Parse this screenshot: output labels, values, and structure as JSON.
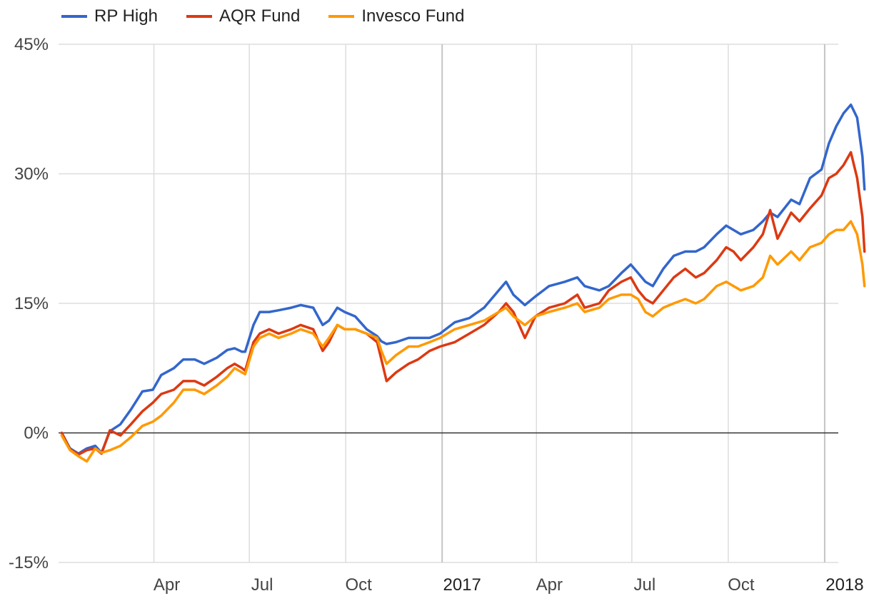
{
  "chart_data": {
    "type": "line",
    "legend_position": "top-left",
    "grid": true,
    "y_axis": {
      "format": "percent",
      "ticks": [
        "45%",
        "30%",
        "15%",
        "0%",
        "-15%"
      ],
      "tick_values": [
        45,
        30,
        15,
        0,
        -15
      ],
      "ylim": [
        -15,
        45
      ]
    },
    "x_axis": {
      "type": "date",
      "range": [
        "2016-01-01",
        "2018-01-14"
      ],
      "ticks": [
        {
          "date": "2016-04-01",
          "label": "Apr",
          "major": false
        },
        {
          "date": "2016-07-01",
          "label": "Jul",
          "major": false
        },
        {
          "date": "2016-10-01",
          "label": "Oct",
          "major": false
        },
        {
          "date": "2017-01-01",
          "label": "2017",
          "major": true
        },
        {
          "date": "2017-04-01",
          "label": "Apr",
          "major": false
        },
        {
          "date": "2017-07-01",
          "label": "Jul",
          "major": false
        },
        {
          "date": "2017-10-01",
          "label": "Oct",
          "major": false
        },
        {
          "date": "2018-01-01",
          "label": "2018",
          "major": true
        }
      ]
    },
    "colors": {
      "rp_high": "#3366cc",
      "aqr": "#dc3912",
      "invesco": "#ff9900",
      "grid": "#dddddd",
      "major_grid": "#c4c4c4",
      "zero_line": "#333333"
    },
    "series": [
      {
        "name": "RP High",
        "color": "#3366cc",
        "points": [
          [
            "2016-01-04",
            0
          ],
          [
            "2016-01-12",
            -1.8
          ],
          [
            "2016-01-20",
            -2.4
          ],
          [
            "2016-01-28",
            -1.8
          ],
          [
            "2016-02-05",
            -1.5
          ],
          [
            "2016-02-11",
            -2.3
          ],
          [
            "2016-02-19",
            0.2
          ],
          [
            "2016-02-29",
            1.0
          ],
          [
            "2016-03-10",
            2.7
          ],
          [
            "2016-03-21",
            4.8
          ],
          [
            "2016-03-31",
            5.0
          ],
          [
            "2016-04-08",
            6.7
          ],
          [
            "2016-04-20",
            7.5
          ],
          [
            "2016-04-29",
            8.5
          ],
          [
            "2016-05-10",
            8.5
          ],
          [
            "2016-05-19",
            8.0
          ],
          [
            "2016-05-31",
            8.7
          ],
          [
            "2016-06-10",
            9.6
          ],
          [
            "2016-06-17",
            9.8
          ],
          [
            "2016-06-24",
            9.4
          ],
          [
            "2016-06-27",
            9.4
          ],
          [
            "2016-07-05",
            12.5
          ],
          [
            "2016-07-11",
            14.0
          ],
          [
            "2016-07-20",
            14.0
          ],
          [
            "2016-07-29",
            14.2
          ],
          [
            "2016-08-10",
            14.5
          ],
          [
            "2016-08-19",
            14.8
          ],
          [
            "2016-08-31",
            14.5
          ],
          [
            "2016-09-09",
            12.5
          ],
          [
            "2016-09-15",
            13.0
          ],
          [
            "2016-09-23",
            14.5
          ],
          [
            "2016-09-30",
            14.0
          ],
          [
            "2016-10-10",
            13.5
          ],
          [
            "2016-10-21",
            12.0
          ],
          [
            "2016-10-31",
            11.2
          ],
          [
            "2016-11-04",
            10.6
          ],
          [
            "2016-11-09",
            10.3
          ],
          [
            "2016-11-18",
            10.5
          ],
          [
            "2016-11-30",
            11.0
          ],
          [
            "2016-12-09",
            11.0
          ],
          [
            "2016-12-20",
            11.0
          ],
          [
            "2016-12-30",
            11.5
          ],
          [
            "2017-01-13",
            12.8
          ],
          [
            "2017-01-27",
            13.3
          ],
          [
            "2017-02-10",
            14.5
          ],
          [
            "2017-02-24",
            16.5
          ],
          [
            "2017-03-03",
            17.5
          ],
          [
            "2017-03-10",
            16.0
          ],
          [
            "2017-03-21",
            14.8
          ],
          [
            "2017-03-31",
            15.8
          ],
          [
            "2017-04-13",
            17.0
          ],
          [
            "2017-04-28",
            17.5
          ],
          [
            "2017-05-10",
            18.0
          ],
          [
            "2017-05-17",
            17.0
          ],
          [
            "2017-05-31",
            16.5
          ],
          [
            "2017-06-09",
            17.0
          ],
          [
            "2017-06-21",
            18.5
          ],
          [
            "2017-06-30",
            19.5
          ],
          [
            "2017-07-07",
            18.5
          ],
          [
            "2017-07-14",
            17.5
          ],
          [
            "2017-07-21",
            17.0
          ],
          [
            "2017-07-31",
            19.0
          ],
          [
            "2017-08-10",
            20.5
          ],
          [
            "2017-08-21",
            21.0
          ],
          [
            "2017-08-31",
            21.0
          ],
          [
            "2017-09-08",
            21.5
          ],
          [
            "2017-09-20",
            23.0
          ],
          [
            "2017-09-29",
            24.0
          ],
          [
            "2017-10-06",
            23.5
          ],
          [
            "2017-10-13",
            23.0
          ],
          [
            "2017-10-25",
            23.5
          ],
          [
            "2017-11-03",
            24.5
          ],
          [
            "2017-11-10",
            25.5
          ],
          [
            "2017-11-17",
            25.0
          ],
          [
            "2017-11-30",
            27.0
          ],
          [
            "2017-12-08",
            26.5
          ],
          [
            "2017-12-18",
            29.5
          ],
          [
            "2017-12-29",
            30.5
          ],
          [
            "2018-01-05",
            33.5
          ],
          [
            "2018-01-12",
            35.5
          ],
          [
            "2018-01-19",
            37.0
          ],
          [
            "2018-01-26",
            38.0
          ],
          [
            "2018-02-01",
            36.5
          ],
          [
            "2018-02-06",
            32.0
          ],
          [
            "2018-02-08",
            28.2
          ]
        ]
      },
      {
        "name": "AQR Fund",
        "color": "#dc3912",
        "points": [
          [
            "2016-01-04",
            0
          ],
          [
            "2016-01-12",
            -1.9
          ],
          [
            "2016-01-20",
            -2.5
          ],
          [
            "2016-01-28",
            -2.0
          ],
          [
            "2016-02-05",
            -1.8
          ],
          [
            "2016-02-11",
            -2.4
          ],
          [
            "2016-02-19",
            0.3
          ],
          [
            "2016-02-29",
            -0.3
          ],
          [
            "2016-03-10",
            1.0
          ],
          [
            "2016-03-21",
            2.5
          ],
          [
            "2016-03-31",
            3.5
          ],
          [
            "2016-04-08",
            4.5
          ],
          [
            "2016-04-20",
            5.0
          ],
          [
            "2016-04-29",
            6.0
          ],
          [
            "2016-05-10",
            6.0
          ],
          [
            "2016-05-19",
            5.5
          ],
          [
            "2016-05-31",
            6.5
          ],
          [
            "2016-06-10",
            7.5
          ],
          [
            "2016-06-17",
            8.0
          ],
          [
            "2016-06-24",
            7.5
          ],
          [
            "2016-06-27",
            7.2
          ],
          [
            "2016-07-05",
            10.5
          ],
          [
            "2016-07-11",
            11.5
          ],
          [
            "2016-07-20",
            12.0
          ],
          [
            "2016-07-29",
            11.5
          ],
          [
            "2016-08-10",
            12.0
          ],
          [
            "2016-08-19",
            12.5
          ],
          [
            "2016-08-31",
            12.0
          ],
          [
            "2016-09-09",
            9.5
          ],
          [
            "2016-09-15",
            10.5
          ],
          [
            "2016-09-23",
            12.5
          ],
          [
            "2016-09-30",
            12.0
          ],
          [
            "2016-10-10",
            12.0
          ],
          [
            "2016-10-21",
            11.5
          ],
          [
            "2016-10-31",
            10.5
          ],
          [
            "2016-11-04",
            8.5
          ],
          [
            "2016-11-09",
            6.0
          ],
          [
            "2016-11-18",
            7.0
          ],
          [
            "2016-11-30",
            8.0
          ],
          [
            "2016-12-09",
            8.5
          ],
          [
            "2016-12-20",
            9.5
          ],
          [
            "2016-12-30",
            10.0
          ],
          [
            "2017-01-13",
            10.5
          ],
          [
            "2017-01-27",
            11.5
          ],
          [
            "2017-02-10",
            12.5
          ],
          [
            "2017-02-24",
            14.0
          ],
          [
            "2017-03-03",
            15.0
          ],
          [
            "2017-03-10",
            14.0
          ],
          [
            "2017-03-21",
            11.0
          ],
          [
            "2017-03-31",
            13.5
          ],
          [
            "2017-04-13",
            14.5
          ],
          [
            "2017-04-28",
            15.0
          ],
          [
            "2017-05-10",
            16.0
          ],
          [
            "2017-05-17",
            14.5
          ],
          [
            "2017-05-31",
            15.0
          ],
          [
            "2017-06-09",
            16.5
          ],
          [
            "2017-06-21",
            17.5
          ],
          [
            "2017-06-30",
            18.0
          ],
          [
            "2017-07-07",
            16.5
          ],
          [
            "2017-07-14",
            15.5
          ],
          [
            "2017-07-21",
            15.0
          ],
          [
            "2017-07-31",
            16.5
          ],
          [
            "2017-08-10",
            18.0
          ],
          [
            "2017-08-21",
            19.0
          ],
          [
            "2017-08-31",
            18.0
          ],
          [
            "2017-09-08",
            18.5
          ],
          [
            "2017-09-20",
            20.0
          ],
          [
            "2017-09-29",
            21.5
          ],
          [
            "2017-10-06",
            21.0
          ],
          [
            "2017-10-13",
            20.0
          ],
          [
            "2017-10-25",
            21.5
          ],
          [
            "2017-11-03",
            23.0
          ],
          [
            "2017-11-10",
            25.8
          ],
          [
            "2017-11-17",
            22.5
          ],
          [
            "2017-11-30",
            25.5
          ],
          [
            "2017-12-08",
            24.5
          ],
          [
            "2017-12-18",
            26.0
          ],
          [
            "2017-12-29",
            27.5
          ],
          [
            "2018-01-05",
            29.5
          ],
          [
            "2018-01-12",
            30.0
          ],
          [
            "2018-01-19",
            31.0
          ],
          [
            "2018-01-26",
            32.5
          ],
          [
            "2018-02-01",
            29.5
          ],
          [
            "2018-02-06",
            25.0
          ],
          [
            "2018-02-08",
            21.0
          ]
        ]
      },
      {
        "name": "Invesco Fund",
        "color": "#ff9900",
        "points": [
          [
            "2016-01-04",
            -0.3
          ],
          [
            "2016-01-12",
            -2.0
          ],
          [
            "2016-01-20",
            -2.7
          ],
          [
            "2016-01-28",
            -3.3
          ],
          [
            "2016-02-05",
            -1.8
          ],
          [
            "2016-02-11",
            -2.3
          ],
          [
            "2016-02-19",
            -2.0
          ],
          [
            "2016-02-29",
            -1.5
          ],
          [
            "2016-03-10",
            -0.5
          ],
          [
            "2016-03-21",
            0.8
          ],
          [
            "2016-03-31",
            1.3
          ],
          [
            "2016-04-08",
            2.0
          ],
          [
            "2016-04-20",
            3.5
          ],
          [
            "2016-04-29",
            5.0
          ],
          [
            "2016-05-10",
            5.0
          ],
          [
            "2016-05-19",
            4.5
          ],
          [
            "2016-05-31",
            5.5
          ],
          [
            "2016-06-10",
            6.5
          ],
          [
            "2016-06-17",
            7.5
          ],
          [
            "2016-06-24",
            7.0
          ],
          [
            "2016-06-27",
            6.8
          ],
          [
            "2016-07-05",
            10.0
          ],
          [
            "2016-07-11",
            11.0
          ],
          [
            "2016-07-20",
            11.5
          ],
          [
            "2016-07-29",
            11.0
          ],
          [
            "2016-08-10",
            11.5
          ],
          [
            "2016-08-19",
            12.0
          ],
          [
            "2016-08-31",
            11.5
          ],
          [
            "2016-09-09",
            10.0
          ],
          [
            "2016-09-15",
            11.0
          ],
          [
            "2016-09-23",
            12.5
          ],
          [
            "2016-09-30",
            12.0
          ],
          [
            "2016-10-10",
            12.0
          ],
          [
            "2016-10-21",
            11.5
          ],
          [
            "2016-10-31",
            11.0
          ],
          [
            "2016-11-04",
            9.5
          ],
          [
            "2016-11-09",
            8.0
          ],
          [
            "2016-11-18",
            9.0
          ],
          [
            "2016-11-30",
            10.0
          ],
          [
            "2016-12-09",
            10.0
          ],
          [
            "2016-12-20",
            10.5
          ],
          [
            "2016-12-30",
            11.0
          ],
          [
            "2017-01-13",
            12.0
          ],
          [
            "2017-01-27",
            12.5
          ],
          [
            "2017-02-10",
            13.0
          ],
          [
            "2017-02-24",
            14.0
          ],
          [
            "2017-03-03",
            14.5
          ],
          [
            "2017-03-10",
            13.5
          ],
          [
            "2017-03-21",
            12.5
          ],
          [
            "2017-03-31",
            13.5
          ],
          [
            "2017-04-13",
            14.0
          ],
          [
            "2017-04-28",
            14.5
          ],
          [
            "2017-05-10",
            15.0
          ],
          [
            "2017-05-17",
            14.0
          ],
          [
            "2017-05-31",
            14.5
          ],
          [
            "2017-06-09",
            15.5
          ],
          [
            "2017-06-21",
            16.0
          ],
          [
            "2017-06-30",
            16.0
          ],
          [
            "2017-07-07",
            15.5
          ],
          [
            "2017-07-14",
            14.0
          ],
          [
            "2017-07-21",
            13.5
          ],
          [
            "2017-07-31",
            14.5
          ],
          [
            "2017-08-10",
            15.0
          ],
          [
            "2017-08-21",
            15.5
          ],
          [
            "2017-08-31",
            15.0
          ],
          [
            "2017-09-08",
            15.5
          ],
          [
            "2017-09-20",
            17.0
          ],
          [
            "2017-09-29",
            17.5
          ],
          [
            "2017-10-06",
            17.0
          ],
          [
            "2017-10-13",
            16.5
          ],
          [
            "2017-10-25",
            17.0
          ],
          [
            "2017-11-03",
            18.0
          ],
          [
            "2017-11-10",
            20.5
          ],
          [
            "2017-11-17",
            19.5
          ],
          [
            "2017-11-30",
            21.0
          ],
          [
            "2017-12-08",
            20.0
          ],
          [
            "2017-12-18",
            21.5
          ],
          [
            "2017-12-29",
            22.0
          ],
          [
            "2018-01-05",
            23.0
          ],
          [
            "2018-01-12",
            23.5
          ],
          [
            "2018-01-19",
            23.5
          ],
          [
            "2018-01-26",
            24.5
          ],
          [
            "2018-02-01",
            23.0
          ],
          [
            "2018-02-06",
            19.5
          ],
          [
            "2018-02-08",
            17.0
          ]
        ]
      }
    ]
  }
}
